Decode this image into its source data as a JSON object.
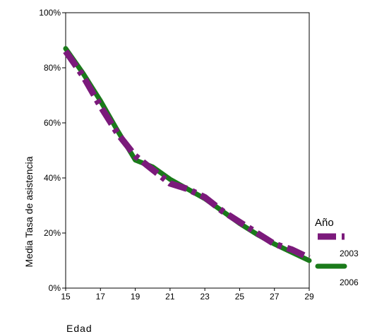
{
  "chart_data": {
    "type": "line",
    "title": "",
    "xlabel": "Edad",
    "ylabel": "Media Tasa de asistencia",
    "xlim": [
      15,
      29
    ],
    "ylim": [
      0,
      1
    ],
    "x_ticks": [
      "15",
      "17",
      "19",
      "21",
      "23",
      "25",
      "27",
      "29"
    ],
    "y_ticks": [
      "0%",
      "20%",
      "40%",
      "60%",
      "80%",
      "100%"
    ],
    "legend": {
      "title": "Año",
      "placement": "right"
    },
    "grid": false,
    "series": [
      {
        "name": "2003",
        "color": "#7b1a7b",
        "style": "dash-dot",
        "x": [
          15,
          16,
          17,
          18,
          19,
          20,
          21,
          22,
          23,
          24,
          25,
          26,
          27,
          28,
          29
        ],
        "y": [
          0.86,
          0.77,
          0.66,
          0.56,
          0.48,
          0.43,
          0.38,
          0.36,
          0.33,
          0.28,
          0.24,
          0.2,
          0.16,
          0.14,
          0.11
        ]
      },
      {
        "name": "2006",
        "color": "#1a7a1a",
        "style": "solid",
        "x": [
          15,
          16,
          17,
          18,
          19,
          20,
          21,
          22,
          23,
          24,
          25,
          26,
          27,
          28,
          29
        ],
        "y": [
          0.87,
          0.78,
          0.68,
          0.57,
          0.465,
          0.44,
          0.395,
          0.36,
          0.325,
          0.28,
          0.235,
          0.195,
          0.16,
          0.13,
          0.1
        ]
      }
    ]
  }
}
